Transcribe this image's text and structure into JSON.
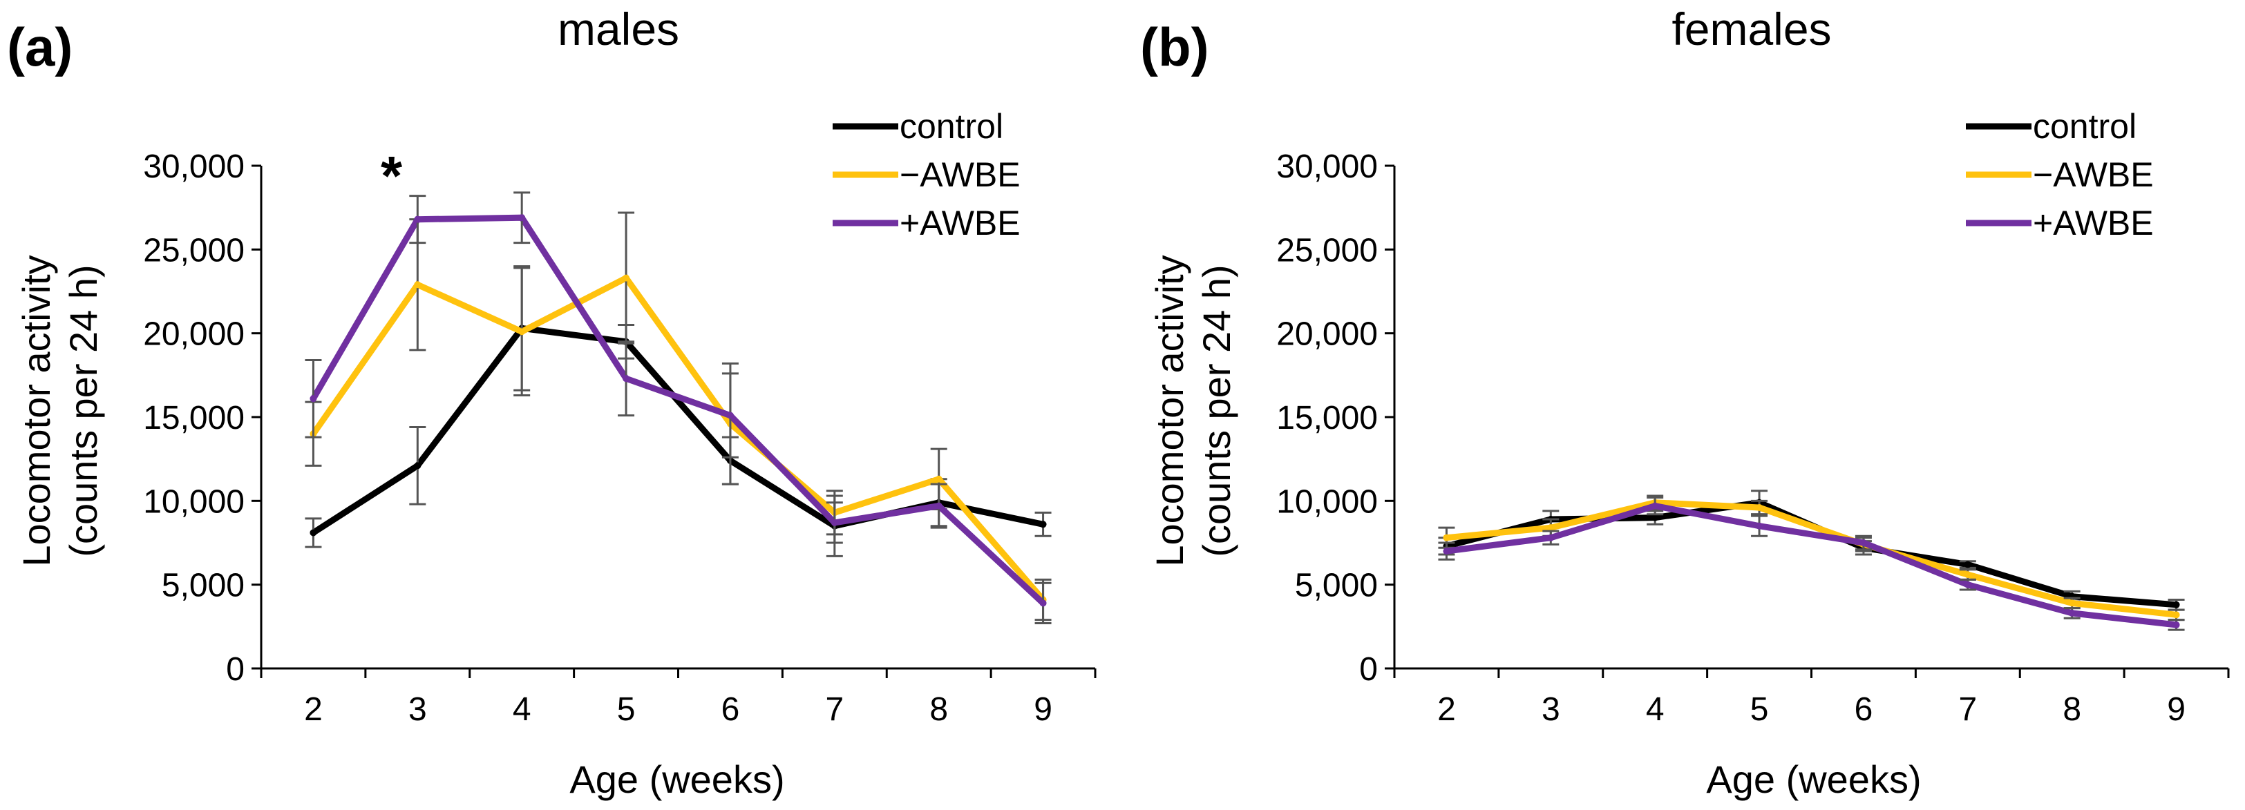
{
  "chart_data": [
    {
      "type": "line",
      "panel_label": "(a)",
      "title": "males",
      "xlabel": "Age (weeks)",
      "ylabel_line1": "Locomotor activity",
      "ylabel_line2": "(counts per 24 h)",
      "x": [
        2,
        3,
        4,
        5,
        6,
        7,
        8,
        9
      ],
      "x_tick_labels": [
        "2",
        "3",
        "4",
        "5",
        "6",
        "7",
        "8",
        "9"
      ],
      "y_ticks": [
        0,
        5000,
        10000,
        15000,
        20000,
        25000,
        30000
      ],
      "y_tick_labels": [
        "0",
        "5,000",
        "10,000",
        "15,000",
        "20,000",
        "25,000",
        "30,000"
      ],
      "ylim": [
        0,
        30000
      ],
      "annotation": {
        "text": "*",
        "x": 2.75,
        "y": 29500
      },
      "series": [
        {
          "name": "control",
          "color": "#000000",
          "values": [
            8100,
            12100,
            20300,
            19500,
            12400,
            8500,
            9900,
            8600
          ],
          "errors": [
            850,
            2300,
            3700,
            1000,
            1400,
            1800,
            1400,
            700
          ]
        },
        {
          "name": "−AWBE",
          "color": "#FFC20E",
          "values": [
            14000,
            22900,
            20100,
            23300,
            14600,
            9300,
            11300,
            4100
          ],
          "errors": [
            1900,
            3900,
            3800,
            3900,
            3600,
            1300,
            1800,
            1200
          ]
        },
        {
          "name": "+AWBE",
          "color": "#7030A0",
          "values": [
            16100,
            26800,
            26900,
            17300,
            15100,
            8700,
            9700,
            3900
          ],
          "errors": [
            2300,
            1400,
            1500,
            2200,
            2500,
            1200,
            1300,
            1200
          ]
        }
      ]
    },
    {
      "type": "line",
      "panel_label": "(b)",
      "title": "females",
      "xlabel": "Age (weeks)",
      "ylabel_line1": "Locomotor activity",
      "ylabel_line2": "(counts per 24 h)",
      "x": [
        2,
        3,
        4,
        5,
        6,
        7,
        8,
        9
      ],
      "x_tick_labels": [
        "2",
        "3",
        "4",
        "5",
        "6",
        "7",
        "8",
        "9"
      ],
      "y_ticks": [
        0,
        5000,
        10000,
        15000,
        20000,
        25000,
        30000
      ],
      "y_tick_labels": [
        "0",
        "5,000",
        "10,000",
        "15,000",
        "20,000",
        "25,000",
        "30,000"
      ],
      "ylim": [
        0,
        30000
      ],
      "series": [
        {
          "name": "control",
          "color": "#000000",
          "values": [
            7300,
            8900,
            9000,
            9900,
            7200,
            6200,
            4300,
            3800
          ],
          "errors": [
            500,
            500,
            400,
            700,
            400,
            200,
            300,
            300
          ]
        },
        {
          "name": "−AWBE",
          "color": "#FFC20E",
          "values": [
            7800,
            8400,
            9900,
            9600,
            7400,
            5600,
            3900,
            3200
          ],
          "errors": [
            600,
            500,
            400,
            400,
            400,
            300,
            300,
            300
          ]
        },
        {
          "name": "+AWBE",
          "color": "#7030A0",
          "values": [
            7000,
            7800,
            9700,
            8500,
            7500,
            5000,
            3300,
            2600
          ],
          "errors": [
            500,
            400,
            500,
            600,
            400,
            300,
            300,
            300
          ]
        }
      ]
    }
  ]
}
